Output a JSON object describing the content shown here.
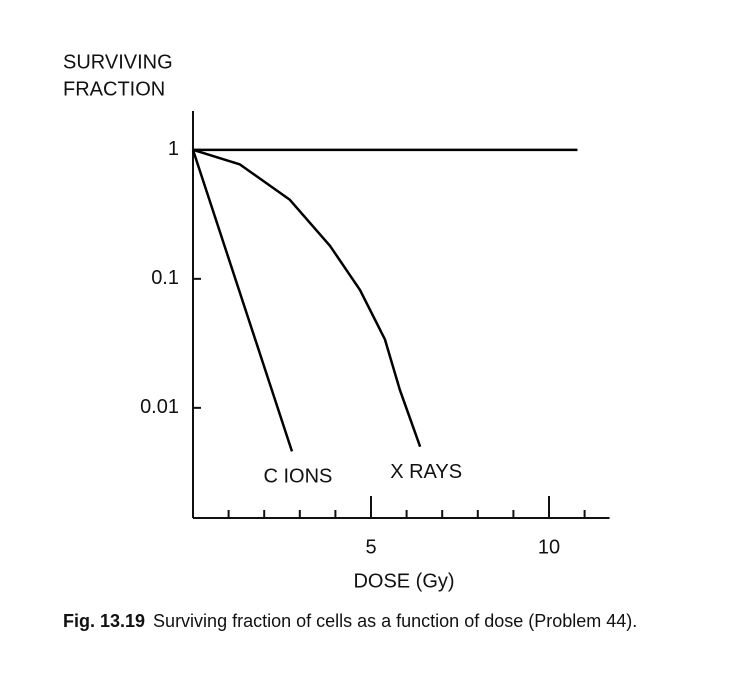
{
  "chart_data": {
    "type": "line",
    "y_label": [
      "SURVIVING",
      "FRACTION"
    ],
    "x_label": "DOSE (Gy)",
    "log_y": true,
    "xlim": [
      0,
      11.7
    ],
    "ylim": [
      0.0014,
      2
    ],
    "xticks": [
      5,
      10
    ],
    "x_minor_ticks": [
      1,
      2,
      3,
      4,
      6,
      7,
      8,
      9,
      11
    ],
    "yticks": [
      1,
      0.1,
      0.01
    ],
    "series": [
      {
        "color": "#000000",
        "x": [
          0,
          10.8
        ],
        "values": [
          1,
          1
        ]
      },
      {
        "name": "C IONS",
        "color": "#000000",
        "x": [
          0,
          2.78
        ],
        "values": [
          1,
          0.0046
        ]
      },
      {
        "name": "X RAYS",
        "color": "#000000",
        "x": [
          0,
          1.32,
          2.72,
          3.85,
          4.69,
          5.39,
          5.81,
          6.38
        ],
        "values": [
          1,
          0.77,
          0.41,
          0.18,
          0.082,
          0.034,
          0.0138,
          0.005
        ]
      }
    ]
  },
  "caption": {
    "label": "Fig. 13.19",
    "text": "Surviving fraction of cells as a function of dose (Problem 44)."
  }
}
